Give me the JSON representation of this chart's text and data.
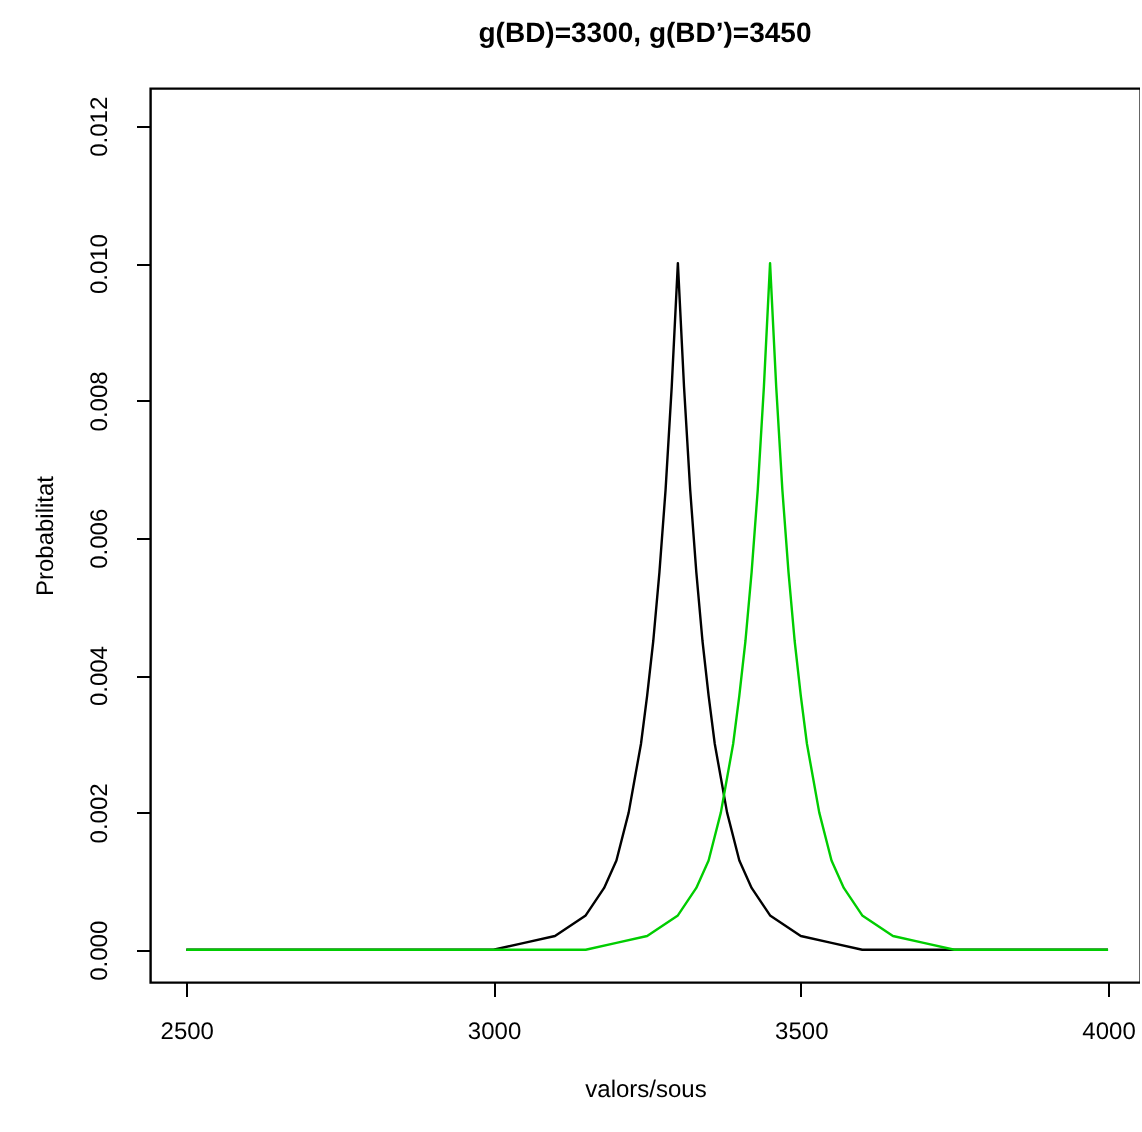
{
  "chart_data": {
    "type": "line",
    "title": "g(BD)=3300, g(BD’)=3450",
    "xlabel": "valors/sous",
    "ylabel": "Probabilitat",
    "xlim": [
      2441,
      4052
    ],
    "ylim": [
      -0.00047,
      0.01255
    ],
    "xticks": [
      2500,
      3000,
      3500,
      4000
    ],
    "yticks": [
      {
        "value": 0.0,
        "label": "0.000"
      },
      0.002,
      0.004,
      0.006,
      0.008,
      {
        "value": 0.01,
        "label": "0.010"
      },
      0.012
    ],
    "grid": false,
    "line_style": "solid",
    "marker": "none",
    "series": [
      {
        "color": "#000000",
        "x": [
          2500,
          3000,
          3050,
          3100,
          3150,
          3180,
          3200,
          3220,
          3230,
          3240,
          3250,
          3260,
          3270,
          3280,
          3290,
          3300,
          3310,
          3320,
          3330,
          3340,
          3350,
          3360,
          3370,
          3380,
          3400,
          3420,
          3450,
          3500,
          3550,
          3600,
          4000
        ],
        "values": [
          0.0,
          0.0,
          0.0001,
          0.0002,
          0.0005,
          0.0009,
          0.0013,
          0.002,
          0.0025,
          0.003,
          0.0037,
          0.0045,
          0.0055,
          0.0067,
          0.0082,
          0.01,
          0.0082,
          0.0067,
          0.0055,
          0.0045,
          0.0037,
          0.003,
          0.0025,
          0.002,
          0.0013,
          0.0009,
          0.0005,
          0.0002,
          0.0001,
          0.0,
          0.0
        ]
      },
      {
        "color": "#00cd00",
        "x": [
          2500,
          3150,
          3200,
          3250,
          3300,
          3330,
          3350,
          3370,
          3380,
          3390,
          3400,
          3410,
          3420,
          3430,
          3440,
          3450,
          3460,
          3470,
          3480,
          3490,
          3500,
          3510,
          3520,
          3530,
          3550,
          3570,
          3600,
          3650,
          3700,
          3750,
          4000
        ],
        "values": [
          0.0,
          0.0,
          0.0001,
          0.0002,
          0.0005,
          0.0009,
          0.0013,
          0.002,
          0.0025,
          0.003,
          0.0037,
          0.0045,
          0.0055,
          0.0067,
          0.0082,
          0.01,
          0.0082,
          0.0067,
          0.0055,
          0.0045,
          0.0037,
          0.003,
          0.0025,
          0.002,
          0.0013,
          0.0009,
          0.0005,
          0.0002,
          0.0001,
          0.0,
          0.0
        ]
      }
    ]
  }
}
